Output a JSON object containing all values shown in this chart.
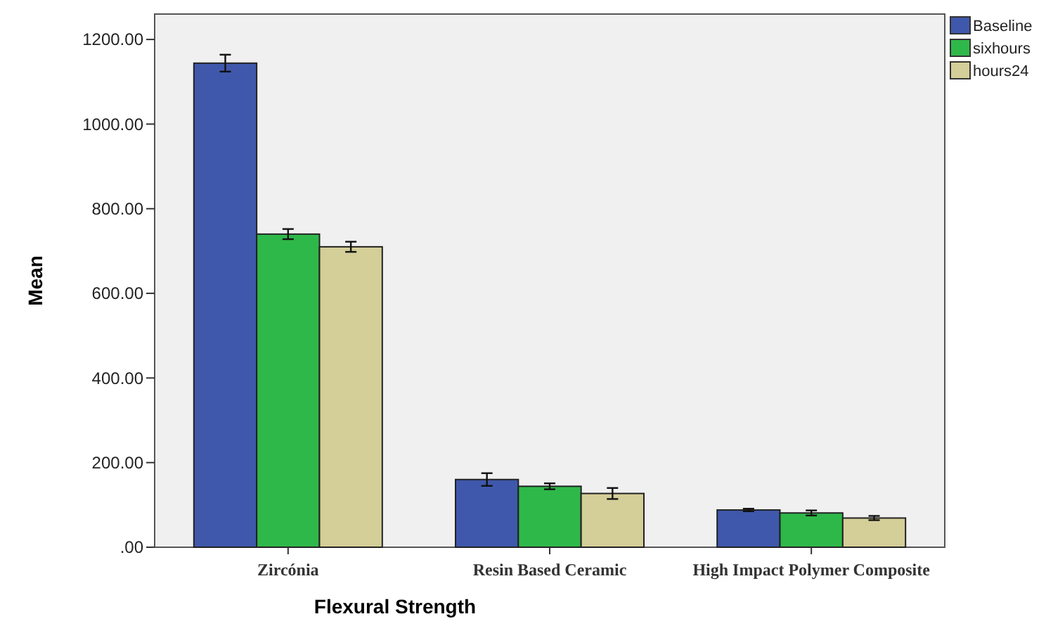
{
  "chart_data": {
    "type": "bar",
    "xlabel": "Flexural Strength",
    "ylabel": "Mean",
    "categories": [
      "Zircónia",
      "Resin Based Ceramic",
      "High Impact Polymer Composite"
    ],
    "series": [
      {
        "name": "Baseline",
        "color": "#3f58ab",
        "values": [
          1144,
          160,
          88
        ],
        "errors": [
          20,
          15,
          3
        ]
      },
      {
        "name": "sixhours",
        "color": "#2fb84a",
        "values": [
          740,
          144,
          81
        ],
        "errors": [
          12,
          7,
          6
        ]
      },
      {
        "name": "hours24",
        "color": "#d4ce98",
        "values": [
          710,
          127,
          69
        ],
        "errors": [
          12,
          13,
          5
        ]
      }
    ],
    "ylim": [
      0,
      1260
    ],
    "yticks": [
      {
        "value": 0,
        "label": ".00"
      },
      {
        "value": 200,
        "label": "200.00"
      },
      {
        "value": 400,
        "label": "400.00"
      },
      {
        "value": 600,
        "label": "600.00"
      },
      {
        "value": 800,
        "label": "800.00"
      },
      {
        "value": 1000,
        "label": "1000.00"
      },
      {
        "value": 1200,
        "label": "1200.00"
      }
    ],
    "legend": "top right",
    "grid": false
  }
}
